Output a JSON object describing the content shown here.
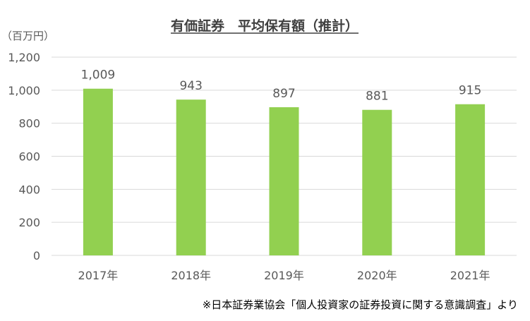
{
  "chart_data": {
    "type": "bar",
    "title": "有価証券　平均保有額（推計）",
    "unit_label": "（百万円）",
    "categories": [
      "2017年",
      "2018年",
      "2019年",
      "2020年",
      "2021年"
    ],
    "values": [
      1009,
      943,
      897,
      881,
      915
    ],
    "data_labels": [
      "1,009",
      "943",
      "897",
      "881",
      "915"
    ],
    "ylim": [
      0,
      1200
    ],
    "y_ticks": [
      0,
      200,
      400,
      600,
      800,
      1000,
      1200
    ],
    "y_tick_labels": [
      "0",
      "200",
      "400",
      "600",
      "800",
      "1,000",
      "1,200"
    ],
    "grid": true,
    "legend": "none",
    "bar_color": "#92d050",
    "grid_color": "#d9d9d9"
  },
  "footer": {
    "source": "※日本証券業協会「個人投資家の証券投資に関する意識調査」より"
  }
}
